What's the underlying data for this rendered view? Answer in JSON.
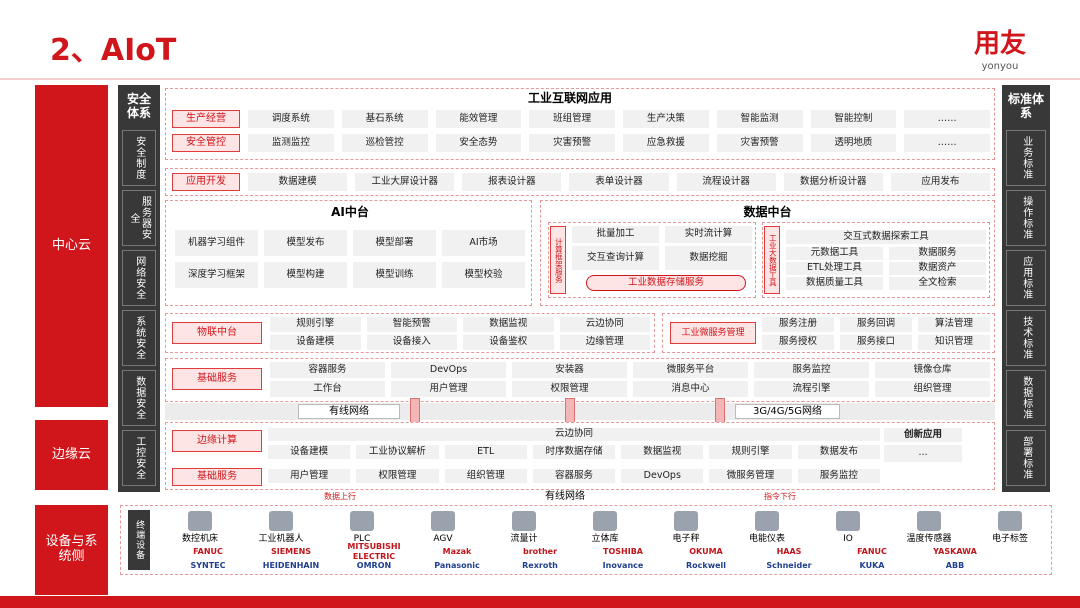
{
  "header": {
    "title": "2、AIoT",
    "logo": "用友",
    "logo_sub": "yonyou"
  },
  "layers": [
    "中心云",
    "边缘云",
    "设备与系统侧"
  ],
  "security": {
    "title": "安全体系",
    "items": [
      "安全制度",
      "服务器安全",
      "网络安全",
      "系统安全",
      "数据安全",
      "工控安全"
    ]
  },
  "standards": {
    "title": "标准体系",
    "items": [
      "业务标准",
      "操作标准",
      "应用标准",
      "技术标准",
      "数据标准",
      "部署标准"
    ]
  },
  "apps": {
    "title": "工业互联网应用",
    "rows": [
      {
        "label": "生产经营",
        "items": [
          "调度系统",
          "基石系统",
          "能效管理",
          "班组管理",
          "生产决策",
          "智能监测",
          "智能控制",
          "……"
        ]
      },
      {
        "label": "安全管控",
        "items": [
          "监测监控",
          "巡检管控",
          "安全态势",
          "灾害预警",
          "应急救援",
          "灾害预警",
          "透明地质",
          "……"
        ]
      }
    ]
  },
  "app_dev": {
    "label": "应用开发",
    "items": [
      "数据建模",
      "工业大屏设计器",
      "报表设计器",
      "表单设计器",
      "流程设计器",
      "数据分析设计器",
      "应用发布"
    ]
  },
  "ai": {
    "title": "AI中台",
    "items": [
      "机器学习组件",
      "模型发布",
      "模型部署",
      "AI市场",
      "深度学习框架",
      "模型构建",
      "模型训练",
      "模型校验"
    ]
  },
  "data_platform": {
    "title": "数据中台",
    "compute": {
      "label": "计算框架服务",
      "items": [
        "批量加工",
        "实时流计算",
        "交互查询计算",
        "数据挖掘"
      ],
      "storage": "工业数据存储服务"
    },
    "tools": {
      "label": "工业大数据工具",
      "header": "交互式数据探索工具",
      "items": [
        "元数据工具",
        "数据服务",
        "ETL处理工具",
        "数据资产",
        "数据质量工具",
        "全文检索"
      ]
    }
  },
  "iot": {
    "label": "物联中台",
    "items": [
      "规则引擎",
      "智能预警",
      "数据监视",
      "云边协同",
      "设备建模",
      "设备接入",
      "设备鉴权",
      "边缘管理"
    ]
  },
  "microservice": {
    "label": "工业微服务管理",
    "items": [
      "服务注册",
      "服务回调",
      "算法管理",
      "服务授权",
      "服务接口",
      "知识管理"
    ]
  },
  "base": {
    "label": "基础服务",
    "items": [
      "容器服务",
      "DevOps",
      "安装器",
      "微服务平台",
      "服务监控",
      "镜像仓库",
      "工作台",
      "用户管理",
      "权限管理",
      "消息中心",
      "流程引擎",
      "组织管理"
    ]
  },
  "network": {
    "wired": "有线网络",
    "wireless": "3G/4G/5G网络"
  },
  "edge": {
    "label": "边缘计算",
    "header": "云边协同",
    "items": [
      "设备建模",
      "工业协议解析",
      "ETL",
      "时序数据存储",
      "数据监视",
      "规则引擎",
      "数据发布"
    ],
    "innovation": {
      "title": "创新应用",
      "more": "..."
    },
    "base": {
      "label": "基础服务",
      "items": [
        "用户管理",
        "权限管理",
        "组织管理",
        "容器服务",
        "DevOps",
        "微服务管理",
        "服务监控"
      ]
    }
  },
  "link": {
    "up": "数据上行",
    "wired": "有线网络",
    "down": "指令下行"
  },
  "devices": {
    "label": "终端设备",
    "items": [
      "数控机床",
      "工业机器人",
      "PLC",
      "AGV",
      "流量计",
      "立体库",
      "电子秤",
      "电能仪表",
      "IO",
      "温度传感器",
      "电子标签"
    ],
    "brands_top": [
      "FANUC",
      "SIEMENS",
      "MITSUBISHI ELECTRIC",
      "Mazak",
      "brother",
      "TOSHIBA",
      "OKUMA",
      "HAAS",
      "FANUC",
      "YASKAWA"
    ],
    "brands_bottom": [
      "SYNTEC",
      "HEIDENHAIN",
      "OMRON",
      "Panasonic",
      "Rexroth",
      "Inovance",
      "Rockwell",
      "Schneider",
      "KUKA",
      "ABB"
    ]
  }
}
